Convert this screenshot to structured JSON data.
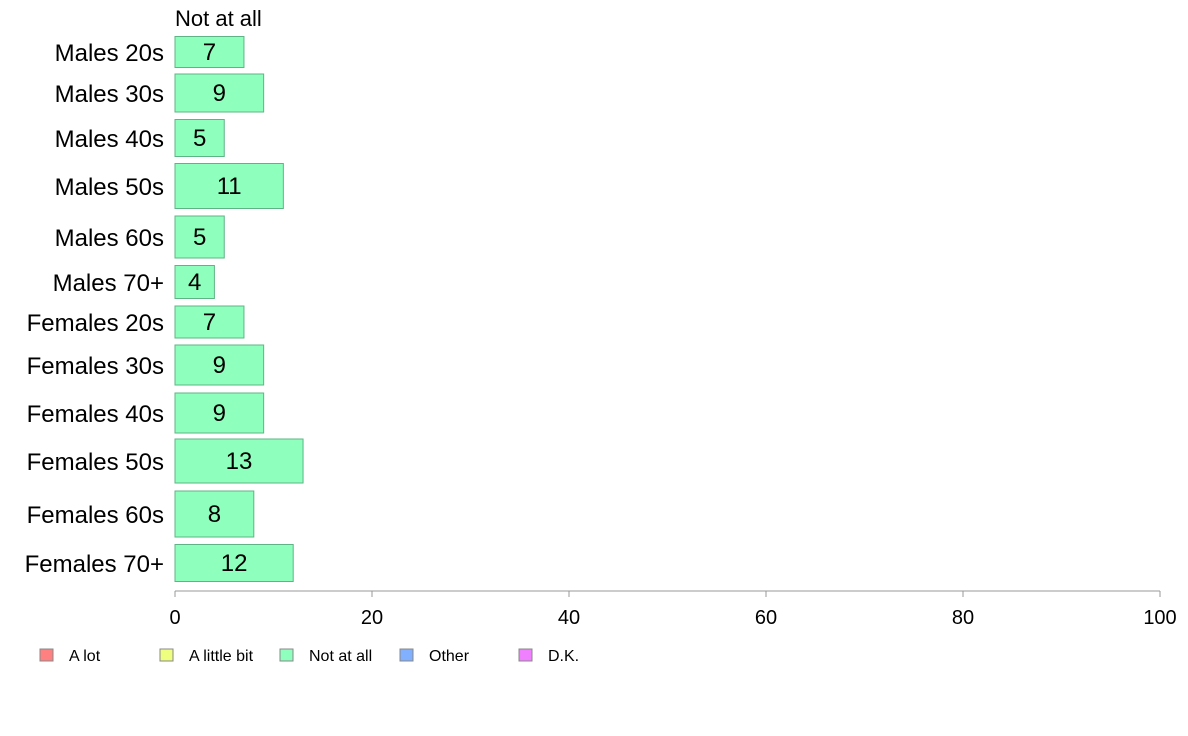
{
  "chart_data": {
    "type": "bar",
    "orientation": "horizontal",
    "stacked": true,
    "series_title": "Not at all",
    "categories": [
      "Males 20s",
      "Males 30s",
      "Males 40s",
      "Males 50s",
      "Males 60s",
      "Males 70+",
      "Females 20s",
      "Females 30s",
      "Females 40s",
      "Females 50s",
      "Females 60s",
      "Females 70+"
    ],
    "series": [
      {
        "name": "Not at all",
        "color": "#8effbd",
        "values": [
          7,
          9,
          5,
          11,
          5,
          4,
          7,
          9,
          9,
          13,
          8,
          12
        ],
        "value_labels": [
          "7",
          "9",
          "5",
          "11",
          "5",
          "4",
          "7",
          "9",
          "9",
          "13",
          "8",
          "12"
        ]
      }
    ],
    "xlim": [
      0,
      100
    ],
    "xticks": [
      "0",
      "20",
      "40",
      "60",
      "80",
      "100"
    ],
    "grid": false,
    "legend": {
      "placement": "bottom",
      "entries": [
        {
          "name": "A lot",
          "color": "#ff8080"
        },
        {
          "name": "A little bit",
          "color": "#eeff80"
        },
        {
          "name": "Not at all",
          "color": "#8effbd"
        },
        {
          "name": "Other",
          "color": "#80b0ff"
        },
        {
          "name": "D.K.",
          "color": "#f080ff"
        }
      ]
    }
  }
}
